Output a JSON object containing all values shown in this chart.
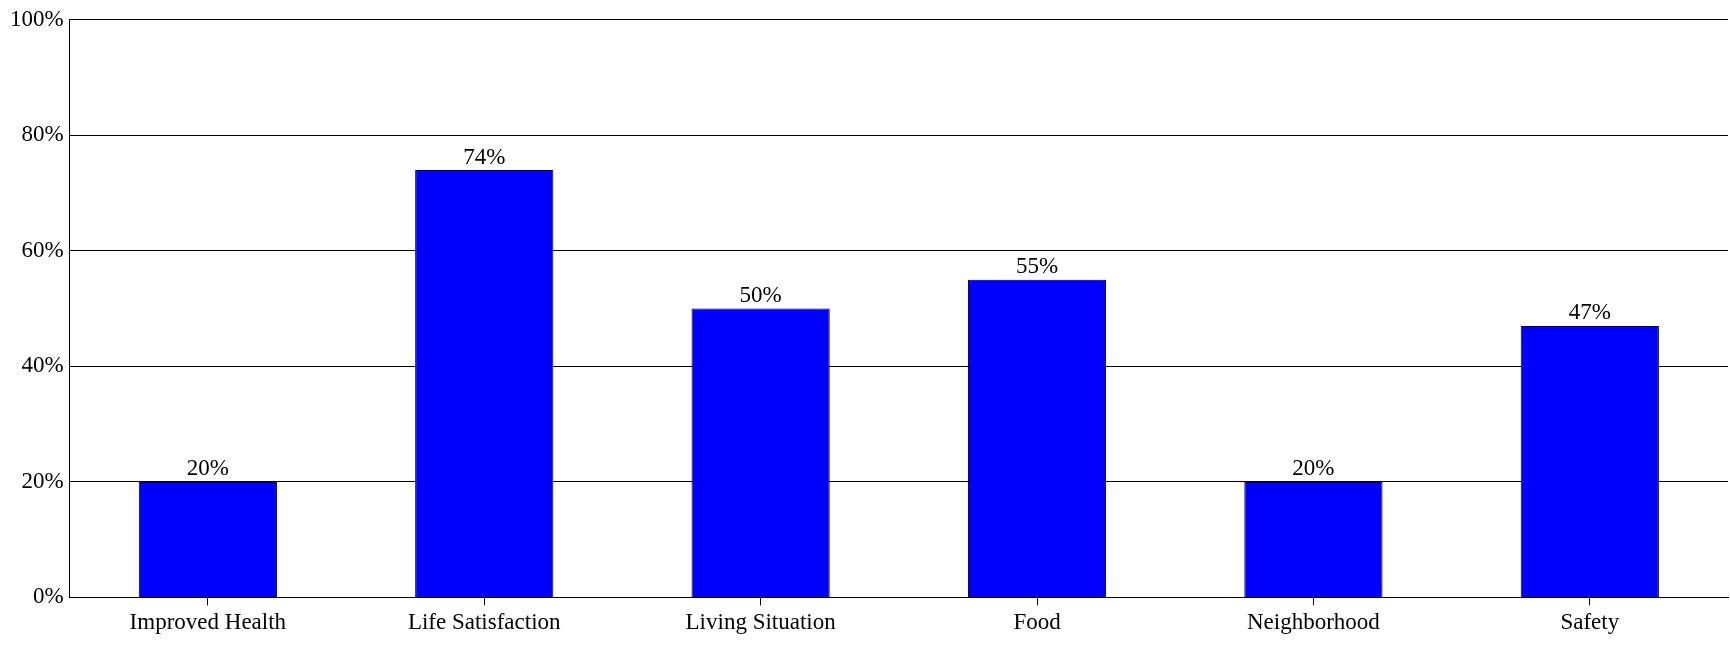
{
  "chart_data": {
    "type": "bar",
    "categories": [
      "Improved Health",
      "Life Satisfaction",
      "Living Situation",
      "Food",
      "Neighborhood",
      "Safety"
    ],
    "values": [
      20,
      74,
      50,
      55,
      20,
      47
    ],
    "value_labels": [
      "20%",
      "74%",
      "50%",
      "55%",
      "20%",
      "47%"
    ],
    "color": "#0000ff",
    "ylim": [
      0,
      100
    ],
    "yticks": [
      {
        "value": 0,
        "label": "0%"
      },
      {
        "value": 20,
        "label": "20%"
      },
      {
        "value": 40,
        "label": "40%"
      },
      {
        "value": 60,
        "label": "60%"
      },
      {
        "value": 80,
        "label": "80%"
      },
      {
        "value": 100,
        "label": "100%"
      }
    ],
    "grid": "y",
    "legend": false
  }
}
